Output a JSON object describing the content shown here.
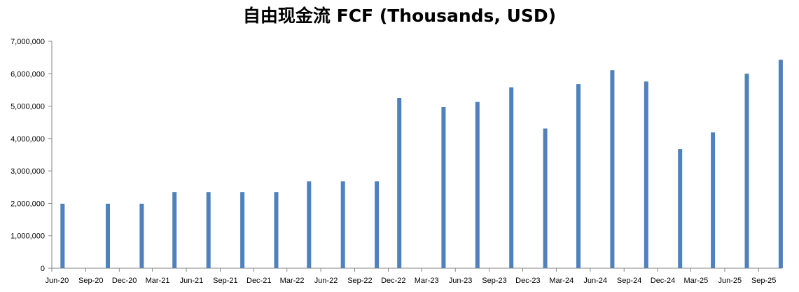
{
  "chart_data": {
    "type": "bar",
    "title": "自由现金流 FCF (Thousands, USD)",
    "xlabel": "",
    "ylabel": "",
    "ylim": [
      0,
      7000000
    ],
    "yticks": [
      0,
      1000000,
      2000000,
      3000000,
      4000000,
      5000000,
      6000000,
      7000000
    ],
    "ytick_labels": [
      "0",
      "1,000,000",
      "2,000,000",
      "3,000,000",
      "4,000,000",
      "5,000,000",
      "6,000,000",
      "7,000,000"
    ],
    "x_tick_labels": [
      "Jun-20",
      "Sep-20",
      "Dec-20",
      "Mar-21",
      "Jun-21",
      "Sep-21",
      "Dec-21",
      "Mar-22",
      "Jun-22",
      "Sep-22",
      "Dec-22",
      "Mar-23",
      "Jun-23",
      "Sep-23",
      "Dec-23",
      "Mar-24",
      "Jun-24",
      "Sep-24",
      "Dec-24",
      "Mar-25",
      "Jun-25",
      "Sep-25"
    ],
    "bars": [
      {
        "date": "2020-06-30",
        "value": 1990000
      },
      {
        "date": "2020-10-31",
        "value": 1990000
      },
      {
        "date": "2021-01-31",
        "value": 1990000
      },
      {
        "date": "2021-04-30",
        "value": 2350000
      },
      {
        "date": "2021-07-31",
        "value": 2350000
      },
      {
        "date": "2021-10-31",
        "value": 2350000
      },
      {
        "date": "2022-01-31",
        "value": 2350000
      },
      {
        "date": "2022-04-30",
        "value": 2680000
      },
      {
        "date": "2022-07-31",
        "value": 2680000
      },
      {
        "date": "2022-10-31",
        "value": 2680000
      },
      {
        "date": "2022-12-31",
        "value": 5250000
      },
      {
        "date": "2023-04-30",
        "value": 4970000
      },
      {
        "date": "2023-07-31",
        "value": 5130000
      },
      {
        "date": "2023-10-31",
        "value": 5580000
      },
      {
        "date": "2024-01-31",
        "value": 4310000
      },
      {
        "date": "2024-04-30",
        "value": 5680000
      },
      {
        "date": "2024-07-31",
        "value": 6110000
      },
      {
        "date": "2024-10-31",
        "value": 5760000
      },
      {
        "date": "2025-01-31",
        "value": 3670000
      },
      {
        "date": "2025-04-30",
        "value": 4190000
      },
      {
        "date": "2025-07-31",
        "value": 6000000
      },
      {
        "date": "2025-10-31",
        "value": 6430000
      }
    ],
    "grid": false,
    "legend": "none",
    "bar_color": "#4F81BD",
    "axis_color": "#868686"
  }
}
